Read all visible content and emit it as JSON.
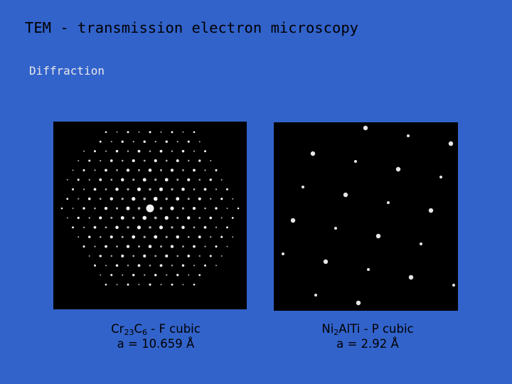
{
  "title": "TEM - transmission electron microscopy",
  "subtitle": "Diffraction",
  "figures": [
    {
      "caption": [
        {
          "text": "Cr",
          "sub": false
        },
        {
          "text": "23",
          "sub": true
        },
        {
          "text": "C",
          "sub": false
        },
        {
          "text": "6",
          "sub": true
        },
        {
          "text": " - F cubic",
          "sub": false
        }
      ],
      "parameter": "a = 10.659 Å"
    },
    {
      "caption": [
        {
          "text": "Ni",
          "sub": false
        },
        {
          "text": "2",
          "sub": true
        },
        {
          "text": "AlTi - P cubic",
          "sub": false
        }
      ],
      "parameter": "a = 2.92 Å"
    }
  ]
}
